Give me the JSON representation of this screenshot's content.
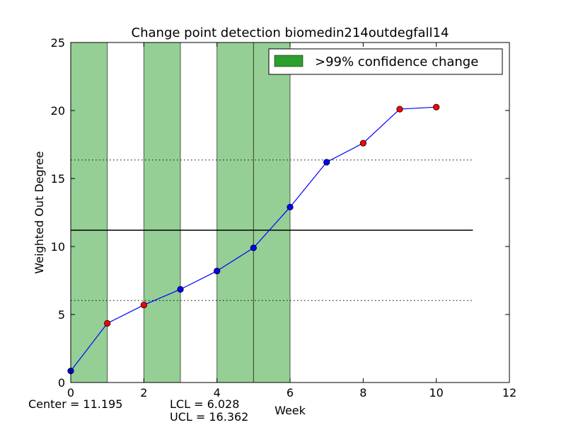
{
  "chart_data": {
    "type": "line",
    "title": "Change point detection biomedin214outdegfall14",
    "xlabel": "Week",
    "ylabel": "Weighted Out Degree",
    "xlim": [
      0,
      12
    ],
    "ylim": [
      0,
      25
    ],
    "xticks": [
      0,
      2,
      4,
      6,
      8,
      10,
      12
    ],
    "yticks": [
      0,
      5,
      10,
      15,
      20,
      25
    ],
    "x": [
      0,
      1,
      2,
      3,
      4,
      5,
      6,
      7,
      8,
      9,
      10
    ],
    "values": [
      0.85,
      4.35,
      5.7,
      6.85,
      8.2,
      9.9,
      12.9,
      16.2,
      17.6,
      20.1,
      20.25
    ],
    "point_colors": [
      "#0000ff",
      "#ff0000",
      "#ff0000",
      "#0000ff",
      "#0000ff",
      "#0000ff",
      "#0000ff",
      "#0000ff",
      "#ff0000",
      "#ff0000",
      "#ff0000"
    ],
    "line_color": "#0000ff",
    "center": 11.195,
    "lcl": 6.028,
    "ucl": 16.362,
    "control_line_xmax": 11,
    "change_regions": [
      [
        0,
        1
      ],
      [
        2,
        3
      ],
      [
        4,
        6
      ]
    ],
    "change_marker_x": 5,
    "region_color": "#2ca02c",
    "legend": {
      "label": ">99% confidence change",
      "position": "top-right"
    },
    "stats": {
      "center": "Center = 11.195",
      "lcl": "LCL = 6.028",
      "ucl": "UCL = 16.362"
    }
  }
}
